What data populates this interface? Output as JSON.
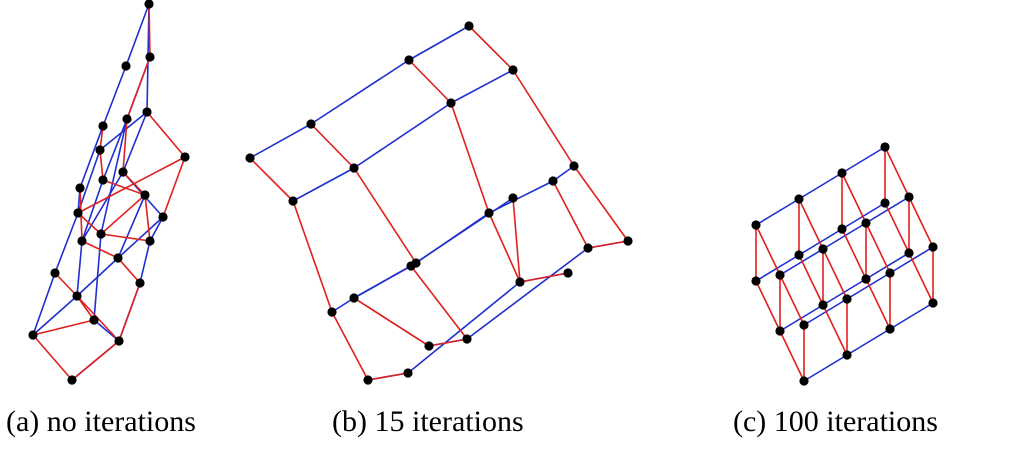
{
  "colors": {
    "edge_blue": "#1f2fd0",
    "edge_red": "#e0201e",
    "node": "#000000"
  },
  "panels": [
    {
      "id": "a",
      "caption": "(a)  no iterations"
    },
    {
      "id": "b",
      "caption": "(b)  15 iterations"
    },
    {
      "id": "c",
      "caption": "(c)  100 iterations"
    }
  ]
}
